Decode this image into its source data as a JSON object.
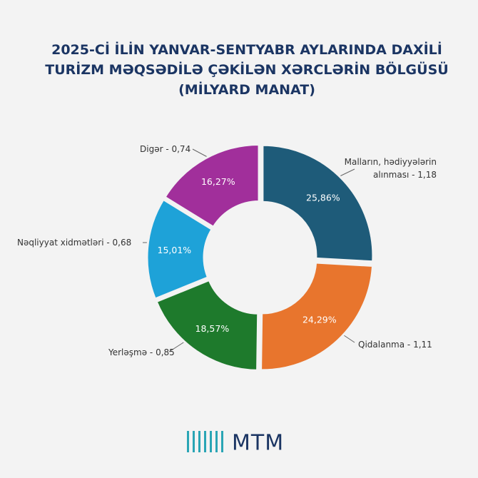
{
  "chart_data": {
    "type": "donut",
    "title": [
      "2025-Cİ İLİN YANVAR-SENTYABR AYLARINDA DAXİLİ",
      "TURİZM MƏQSƏDİLƏ ÇƏKİLƏN XƏRCLƏRİN BÖLGÜSÜ",
      "(MİLYARD MANAT)"
    ],
    "categories": [
      "Malların, hədiyyələrin alınması -",
      "Qidalanma -",
      "Yerləşmə -",
      "Nəqliyyat xidmətləri -",
      "Digər -"
    ],
    "values": [
      1.18,
      1.11,
      0.85,
      0.68,
      0.74
    ],
    "value_labels": [
      "1,18",
      "1,11",
      "0,85",
      "0,68",
      "0,74"
    ],
    "percents": [
      25.86,
      24.29,
      18.57,
      15.01,
      16.27
    ],
    "percent_labels": [
      "25,86%",
      "24,29%",
      "18,57%",
      "15,01%",
      "16,27%"
    ],
    "colors": [
      "#1e5b79",
      "#e8752d",
      "#1e7a2c",
      "#1ea2d8",
      "#a12f9b"
    ]
  },
  "logo": "MTM"
}
